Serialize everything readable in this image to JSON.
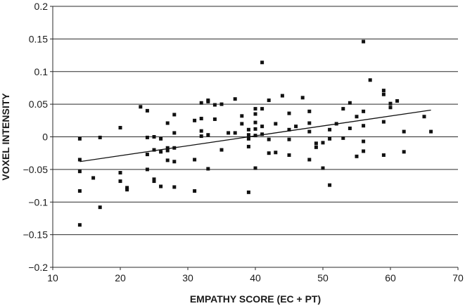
{
  "chart_data": {
    "type": "scatter",
    "title": "",
    "xlabel": "EMPATHY SCORE (EC + PT)",
    "ylabel": "VOXEL INTENSITY",
    "xlim": [
      10,
      70
    ],
    "ylim": [
      -0.2,
      0.2
    ],
    "x_ticks": [
      "10",
      "20",
      "30",
      "40",
      "50",
      "60",
      "70"
    ],
    "y_ticks": [
      "0.2",
      "0.15",
      "0.1",
      "0.05",
      "0",
      "−0.05",
      "−0.1",
      "−0.15",
      "−0.2"
    ],
    "y_tick_values": [
      0.2,
      0.15,
      0.1,
      0.05,
      0,
      -0.05,
      -0.1,
      -0.15,
      -0.2
    ],
    "x_tick_values": [
      10,
      20,
      30,
      40,
      50,
      60,
      70
    ],
    "grid": "horizontal",
    "legend": "none",
    "marker_color": "#111111",
    "series": [
      {
        "values": [
          [
            14,
            -0.003
          ],
          [
            14,
            -0.035
          ],
          [
            14,
            -0.053
          ],
          [
            14,
            -0.083
          ],
          [
            14,
            -0.135
          ],
          [
            16,
            -0.063
          ],
          [
            17,
            -0.001
          ],
          [
            17,
            -0.108
          ],
          [
            20,
            0.014
          ],
          [
            20,
            -0.055
          ],
          [
            20,
            -0.068
          ],
          [
            21,
            -0.078
          ],
          [
            21,
            -0.081
          ],
          [
            23,
            0.046
          ],
          [
            24,
            0.04
          ],
          [
            24,
            -0.001
          ],
          [
            24,
            -0.027
          ],
          [
            24,
            -0.05
          ],
          [
            25,
            0.0
          ],
          [
            25,
            -0.02
          ],
          [
            25,
            -0.065
          ],
          [
            25,
            -0.068
          ],
          [
            26,
            -0.003
          ],
          [
            26,
            -0.023
          ],
          [
            26,
            -0.076
          ],
          [
            27,
            0.021
          ],
          [
            27,
            -0.017
          ],
          [
            27,
            -0.021
          ],
          [
            27,
            -0.036
          ],
          [
            28,
            0.034
          ],
          [
            28,
            0.006
          ],
          [
            28,
            -0.017
          ],
          [
            28,
            -0.038
          ],
          [
            28,
            -0.077
          ],
          [
            31,
            0.025
          ],
          [
            31,
            -0.035
          ],
          [
            31,
            -0.083
          ],
          [
            32,
            0.052
          ],
          [
            32,
            0.028
          ],
          [
            32,
            0.009
          ],
          [
            32,
            0.001
          ],
          [
            33,
            0.056
          ],
          [
            33,
            0.054
          ],
          [
            33,
            0.003
          ],
          [
            33,
            -0.049
          ],
          [
            34,
            0.049
          ],
          [
            34,
            0.027
          ],
          [
            35,
            0.05
          ],
          [
            35,
            -0.02
          ],
          [
            36,
            0.006
          ],
          [
            37,
            0.058
          ],
          [
            37,
            0.006
          ],
          [
            38,
            0.032
          ],
          [
            38,
            0.02
          ],
          [
            39,
            0.011
          ],
          [
            39,
            0.003
          ],
          [
            39,
            -0.003
          ],
          [
            39,
            -0.015
          ],
          [
            39,
            -0.085
          ],
          [
            40,
            0.043
          ],
          [
            40,
            0.035
          ],
          [
            40,
            0.022
          ],
          [
            40,
            0.012
          ],
          [
            40,
            0.002
          ],
          [
            40,
            -0.048
          ],
          [
            41,
            0.114
          ],
          [
            41,
            0.043
          ],
          [
            41,
            0.016
          ],
          [
            41,
            0.004
          ],
          [
            42,
            0.056
          ],
          [
            42,
            -0.004
          ],
          [
            42,
            -0.025
          ],
          [
            43,
            0.02
          ],
          [
            43,
            -0.024
          ],
          [
            44,
            0.063
          ],
          [
            45,
            0.036
          ],
          [
            45,
            0.011
          ],
          [
            45,
            -0.004
          ],
          [
            45,
            -0.028
          ],
          [
            46,
            0.016
          ],
          [
            47,
            0.06
          ],
          [
            48,
            0.039
          ],
          [
            48,
            0.021
          ],
          [
            48,
            0.008
          ],
          [
            48,
            -0.035
          ],
          [
            49,
            -0.01
          ],
          [
            49,
            -0.016
          ],
          [
            50,
            -0.009
          ],
          [
            50,
            -0.048
          ],
          [
            51,
            0.011
          ],
          [
            51,
            -0.003
          ],
          [
            51,
            -0.074
          ],
          [
            52,
            0.02
          ],
          [
            53,
            0.043
          ],
          [
            53,
            -0.002
          ],
          [
            54,
            0.052
          ],
          [
            54,
            0.013
          ],
          [
            55,
            0.031
          ],
          [
            55,
            -0.03
          ],
          [
            56,
            0.146
          ],
          [
            56,
            0.039
          ],
          [
            56,
            0.017
          ],
          [
            56,
            -0.007
          ],
          [
            56,
            -0.022
          ],
          [
            57,
            0.087
          ],
          [
            59,
            0.071
          ],
          [
            59,
            0.065
          ],
          [
            59,
            0.023
          ],
          [
            59,
            -0.028
          ],
          [
            60,
            0.051
          ],
          [
            60,
            0.045
          ],
          [
            61,
            0.055
          ],
          [
            62,
            0.008
          ],
          [
            62,
            -0.023
          ],
          [
            65,
            0.031
          ],
          [
            66,
            0.008
          ]
        ]
      }
    ],
    "trendline": {
      "x": [
        14,
        66
      ],
      "y": [
        -0.038,
        0.041
      ]
    }
  }
}
